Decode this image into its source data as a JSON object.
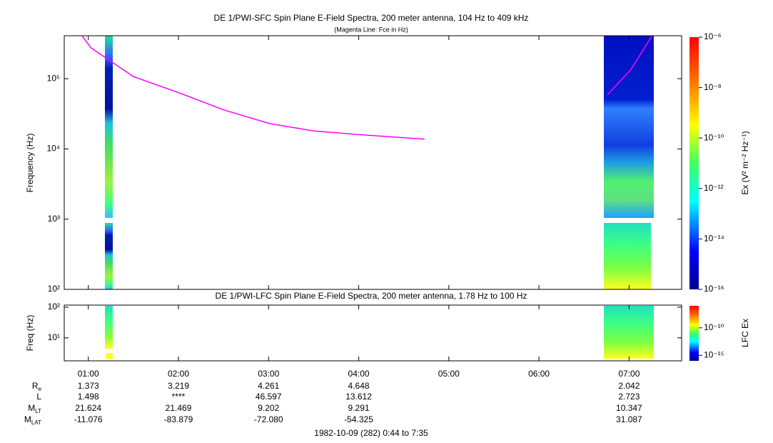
{
  "chart_data": [
    {
      "type": "line",
      "title": "DE 1/PWI-SFC  Spin Plane E-Field Spectra, 200 meter antenna, 104 Hz to 409 kHz",
      "subtitle": "(Magenta Line: Fce in Hz)",
      "y_label": "Frequency (Hz)",
      "log_y": true,
      "xlim": [
        0.733,
        7.583
      ],
      "ylim": [
        100,
        409000
      ],
      "yticks": [
        {
          "value": 100,
          "label": "10²"
        },
        {
          "value": 1000,
          "label": "10³"
        },
        {
          "value": 10000,
          "label": "10⁴"
        },
        {
          "value": 100000,
          "label": "10⁵"
        }
      ],
      "x": [
        0.93,
        1.03,
        1.27,
        1.5,
        2.02,
        2.5,
        3.01,
        3.5,
        4.0,
        4.73,
        5.5,
        6.76,
        7.02,
        7.25
      ],
      "series": [
        {
          "name": "Fce",
          "color": "#ff00ff",
          "values": [
            409000,
            275000,
            170000,
            107000,
            62000,
            36000,
            23000,
            18000,
            16000,
            13800,
            null,
            59000,
            135000,
            400000
          ]
        }
      ],
      "colorbar": {
        "label": "Ex (V² m⁻² Hz⁻¹)",
        "lim": [
          1e-16,
          1e-06
        ],
        "ticks": [
          {
            "value": 1e-06,
            "label": "10⁻⁶"
          },
          {
            "value": 1e-08,
            "label": "10⁻⁸"
          },
          {
            "value": 1e-10,
            "label": "10⁻¹⁰"
          },
          {
            "value": 1e-12,
            "label": "10⁻¹²"
          },
          {
            "value": 1e-14,
            "label": "10⁻¹⁴"
          },
          {
            "value": 1e-16,
            "label": "10⁻¹⁶"
          }
        ]
      }
    },
    {
      "type": "spectrogram",
      "title": "DE 1/PWI-LFC  Spin Plane E-Field Spectra, 200 meter antenna, 1.78 Hz to 100 Hz",
      "y_label": "Freq (Hz)",
      "log_y": true,
      "xlim": [
        0.733,
        7.583
      ],
      "ylim": [
        1.78,
        117
      ],
      "yticks": [
        {
          "value": 10,
          "label": "10¹"
        },
        {
          "value": 100,
          "label": "10²"
        }
      ],
      "xticks": [
        {
          "value": 1,
          "label": "01:00"
        },
        {
          "value": 2,
          "label": "02:00"
        },
        {
          "value": 3,
          "label": "03:00"
        },
        {
          "value": 4,
          "label": "04:00"
        },
        {
          "value": 5,
          "label": "05:00"
        },
        {
          "value": 6,
          "label": "06:00"
        },
        {
          "value": 7,
          "label": "07:00"
        }
      ],
      "colorbar": {
        "label": "LFC Ex",
        "lim": [
          1e-16,
          1e-06
        ],
        "ticks": [
          {
            "value": 1e-10,
            "label": "10⁻¹⁰"
          },
          {
            "value": 1e-15,
            "label": "10⁻¹⁵"
          }
        ]
      }
    }
  ],
  "ephemeris": {
    "rows": [
      {
        "label": "R",
        "sub": "e",
        "values": [
          "1.373",
          "3.219",
          "4.261",
          "4.648",
          null,
          null,
          "2.042"
        ]
      },
      {
        "label": "L",
        "sub": null,
        "values": [
          "1.498",
          "****",
          "46.597",
          "13.612",
          null,
          null,
          "2.723"
        ]
      },
      {
        "label": "M",
        "sub": "LT",
        "values": [
          "21.624",
          "21.469",
          "9.202",
          "9.291",
          null,
          null,
          "10.347"
        ]
      },
      {
        "label": "M",
        "sub": "LAT",
        "values": [
          "-11.076",
          "-83.879",
          "-72.080",
          "-54.325",
          null,
          null,
          "31.087"
        ]
      }
    ],
    "footer": "1982-10-09 (282) 0:44 to 7:35"
  }
}
